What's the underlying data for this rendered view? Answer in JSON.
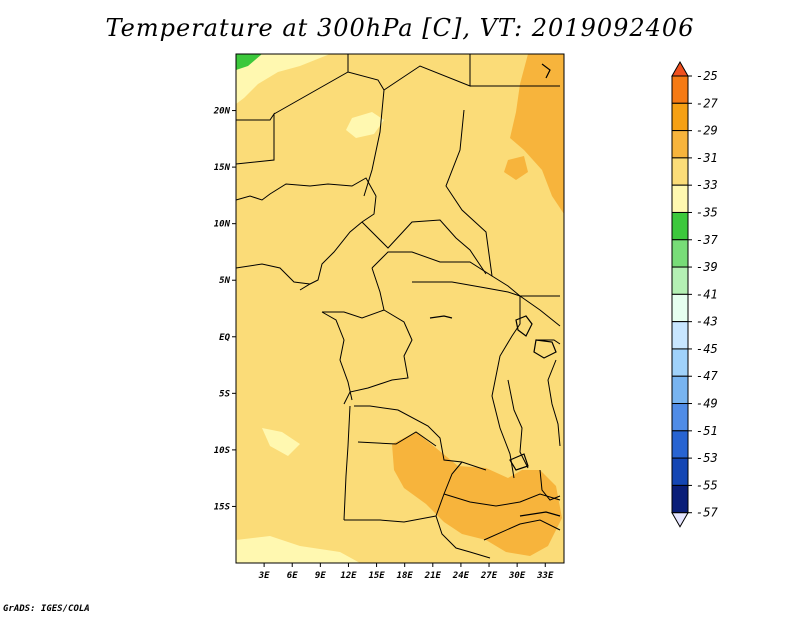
{
  "title": "Temperature at 300hPa [C], VT: 2019092406",
  "credit": "GrADS: IGES/COLA",
  "map": {
    "lon_range": [
      0,
      35
    ],
    "lat_range": [
      -20,
      25
    ],
    "base_fill_level": "-33 to -31",
    "lon_ticks": [
      "3E",
      "6E",
      "9E",
      "12E",
      "15E",
      "18E",
      "21E",
      "24E",
      "27E",
      "30E",
      "33E"
    ],
    "lat_ticks": [
      "20N",
      "15N",
      "10N",
      "5N",
      "EQ",
      "5S",
      "10S",
      "15S"
    ]
  },
  "colorbar": {
    "labels": [
      "-25",
      "-27",
      "-29",
      "-31",
      "-33",
      "-35",
      "-37",
      "-39",
      "-41",
      "-43",
      "-45",
      "-47",
      "-49",
      "-51",
      "-53",
      "-55",
      "-57"
    ],
    "colors": [
      "#f0501e",
      "#f57a14",
      "#f5a014",
      "#f7b43c",
      "#fbdc78",
      "#fff8b0",
      "#3cc83c",
      "#78dc78",
      "#b4f0b4",
      "#e6fff0",
      "#c8e6ff",
      "#a0d2fa",
      "#78b4f0",
      "#508ce6",
      "#2864d2",
      "#1446b4",
      "#0a1e78",
      "#e6e6ff"
    ]
  },
  "colors": {
    "base": "#fbdc78",
    "warm": "#f7b43c",
    "cool": "#fff8b0",
    "green": "#3cc83c"
  }
}
